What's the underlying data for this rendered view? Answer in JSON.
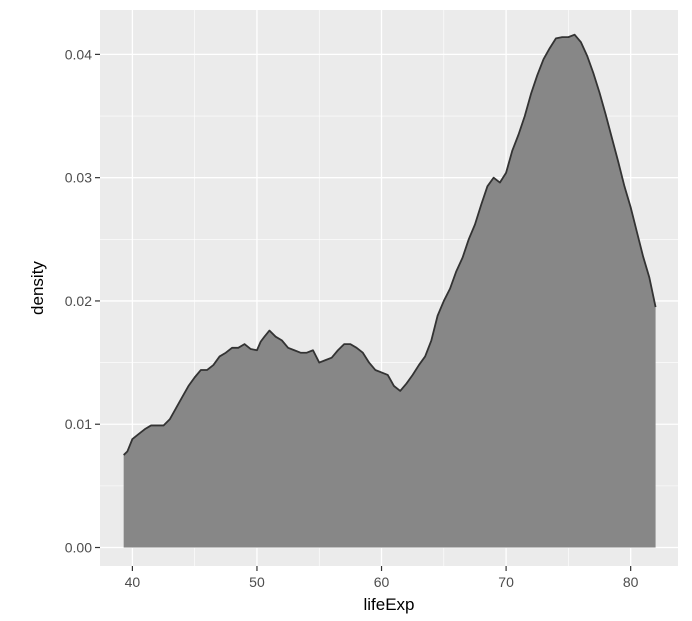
{
  "chart_data": {
    "type": "area",
    "title": "",
    "xlabel": "lifeExp",
    "ylabel": "density",
    "xlim": [
      37.4,
      83.8
    ],
    "ylim": [
      -0.0015,
      0.0436
    ],
    "x_ticks": [
      40,
      50,
      60,
      70,
      80
    ],
    "x_tick_labels": [
      "40",
      "50",
      "60",
      "70",
      "80"
    ],
    "y_ticks": [
      0.0,
      0.01,
      0.02,
      0.03,
      0.04
    ],
    "y_tick_labels": [
      "0.00",
      "0.01",
      "0.02",
      "0.03",
      "0.04"
    ],
    "grid": true,
    "colors": {
      "panel_background": "#ebebeb",
      "grid_major": "#ffffff",
      "fill": "#878787",
      "outline": "#333333"
    },
    "series": [
      {
        "x": [
          39.3,
          39.6,
          40.0,
          40.5,
          41.0,
          41.5,
          42.0,
          42.5,
          43.0,
          43.5,
          44.0,
          44.5,
          45.0,
          45.5,
          46.0,
          46.5,
          47.0,
          47.5,
          48.0,
          48.5,
          49.0,
          49.5,
          50.0,
          50.3,
          50.6,
          51.0,
          51.5,
          52.0,
          52.5,
          53.0,
          53.5,
          54.0,
          54.5,
          55.0,
          55.5,
          56.0,
          56.5,
          57.0,
          57.5,
          58.0,
          58.5,
          59.0,
          59.5,
          60.0,
          60.5,
          61.0,
          61.5,
          62.0,
          62.5,
          63.0,
          63.5,
          64.0,
          64.5,
          65.0,
          65.5,
          66.0,
          66.5,
          67.0,
          67.5,
          68.0,
          68.5,
          69.0,
          69.5,
          70.0,
          70.5,
          71.0,
          71.5,
          72.0,
          72.5,
          73.0,
          73.5,
          74.0,
          74.5,
          75.0,
          75.5,
          76.0,
          76.5,
          77.0,
          77.5,
          78.0,
          78.5,
          79.0,
          79.5,
          80.0,
          80.5,
          81.0,
          81.5,
          82.0
        ],
        "y": [
          0.0075,
          0.0078,
          0.0088,
          0.0092,
          0.0096,
          0.0099,
          0.0099,
          0.0099,
          0.0104,
          0.0113,
          0.0122,
          0.0131,
          0.0138,
          0.0144,
          0.0144,
          0.0148,
          0.0155,
          0.0158,
          0.0162,
          0.0162,
          0.0165,
          0.0161,
          0.016,
          0.0167,
          0.0171,
          0.0176,
          0.0171,
          0.0168,
          0.0162,
          0.016,
          0.0158,
          0.0158,
          0.016,
          0.015,
          0.0152,
          0.0154,
          0.016,
          0.0165,
          0.0165,
          0.0162,
          0.0158,
          0.015,
          0.0144,
          0.0142,
          0.014,
          0.0131,
          0.0127,
          0.0133,
          0.014,
          0.0148,
          0.0155,
          0.0168,
          0.0188,
          0.02,
          0.021,
          0.0224,
          0.0235,
          0.025,
          0.0262,
          0.0278,
          0.0293,
          0.03,
          0.0296,
          0.0304,
          0.0322,
          0.0335,
          0.035,
          0.0368,
          0.0383,
          0.0396,
          0.0405,
          0.0413,
          0.0414,
          0.0414,
          0.0416,
          0.041,
          0.0399,
          0.0385,
          0.0369,
          0.0351,
          0.0332,
          0.0313,
          0.0293,
          0.0276,
          0.0256,
          0.0236,
          0.0219,
          0.0195
        ]
      }
    ]
  }
}
